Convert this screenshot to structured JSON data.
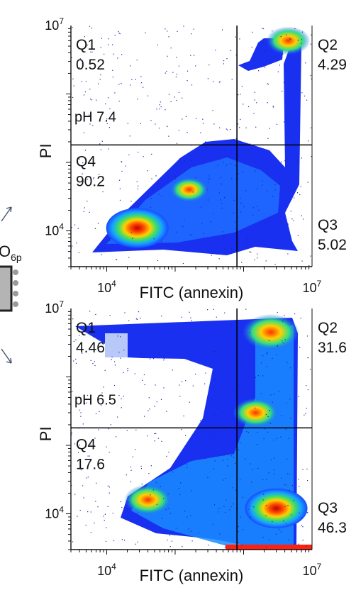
{
  "chart_data": [
    {
      "type": "scatter",
      "subtype": "flow-cytometry-density",
      "xlabel": "FITC (annexin)",
      "ylabel": "PI",
      "x_ticks": [
        {
          "base": "10",
          "exp": "4"
        },
        {
          "base": "10",
          "exp": "7"
        }
      ],
      "y_ticks": [
        {
          "base": "10",
          "exp": "7"
        },
        {
          "base": "10",
          "exp": "4"
        }
      ],
      "xlim": [
        3000,
        10000000
      ],
      "ylim": [
        3000,
        10000000
      ],
      "xscale": "log",
      "yscale": "log",
      "gate": {
        "x": 800000,
        "y": 180000
      },
      "condition": "pH 7.4",
      "quadrants": [
        {
          "name": "Q1",
          "value": "0.52"
        },
        {
          "name": "Q2",
          "value": "4.29"
        },
        {
          "name": "Q3",
          "value": "5.02"
        },
        {
          "name": "Q4",
          "value": "90.2"
        }
      ],
      "populations": [
        {
          "x": 28000,
          "y": 11000,
          "level": 1.0
        },
        {
          "x": 160000,
          "y": 40000,
          "level": 0.35
        },
        {
          "x": 4500000,
          "y": 6000000,
          "level": 0.5
        }
      ]
    },
    {
      "type": "scatter",
      "subtype": "flow-cytometry-density",
      "xlabel": "FITC (annexin)",
      "ylabel": "PI",
      "x_ticks": [
        {
          "base": "10",
          "exp": "4"
        },
        {
          "base": "10",
          "exp": "7"
        }
      ],
      "y_ticks": [
        {
          "base": "10",
          "exp": "7"
        },
        {
          "base": "10",
          "exp": "4"
        }
      ],
      "xlim": [
        3000,
        10000000
      ],
      "ylim": [
        3000,
        10000000
      ],
      "xscale": "log",
      "yscale": "log",
      "gate": {
        "x": 800000,
        "y": 180000
      },
      "condition": "pH 6.5",
      "quadrants": [
        {
          "name": "Q1",
          "value": "4.46"
        },
        {
          "name": "Q2",
          "value": "31.6"
        },
        {
          "name": "Q3",
          "value": "46.3"
        },
        {
          "name": "Q4",
          "value": "17.6"
        }
      ],
      "populations": [
        {
          "x": 3000000,
          "y": 12000,
          "level": 1.0
        },
        {
          "x": 2500000,
          "y": 4500000,
          "level": 0.85
        },
        {
          "x": 40000,
          "y": 16000,
          "level": 0.6
        },
        {
          "x": 1500000,
          "y": 300000,
          "level": 0.55
        }
      ]
    }
  ],
  "side_fragment": {
    "label_main": "O",
    "label_sub": "6p"
  }
}
